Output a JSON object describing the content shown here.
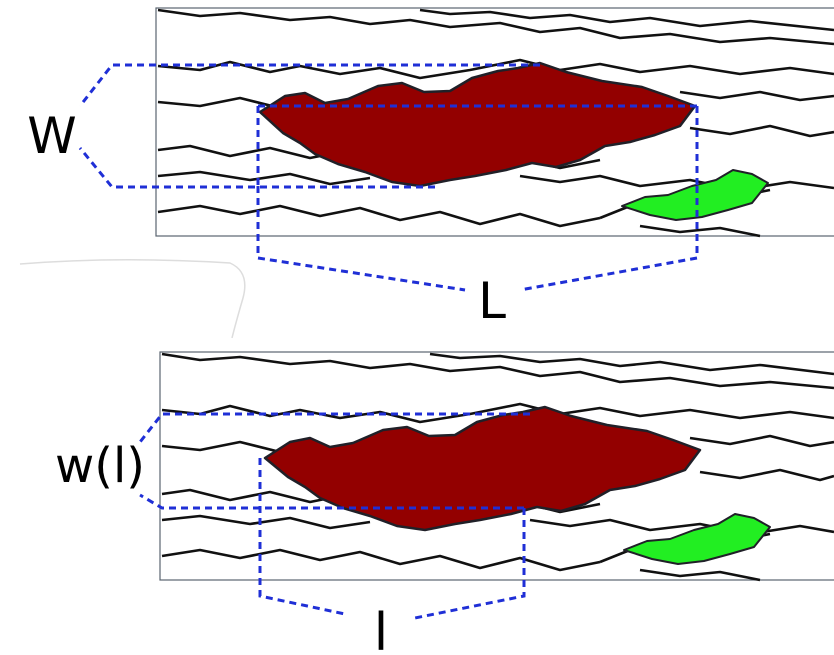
{
  "colors": {
    "large_cluster": "#930000",
    "small_cluster": "#22ee22",
    "bracket": "#1f2fd6",
    "crack_lines": "#111111",
    "frame": "#5a6470"
  },
  "top_panel": {
    "width_label": "W",
    "length_label": "L"
  },
  "bottom_panel": {
    "width_label": "w(l)",
    "length_label": "l"
  }
}
